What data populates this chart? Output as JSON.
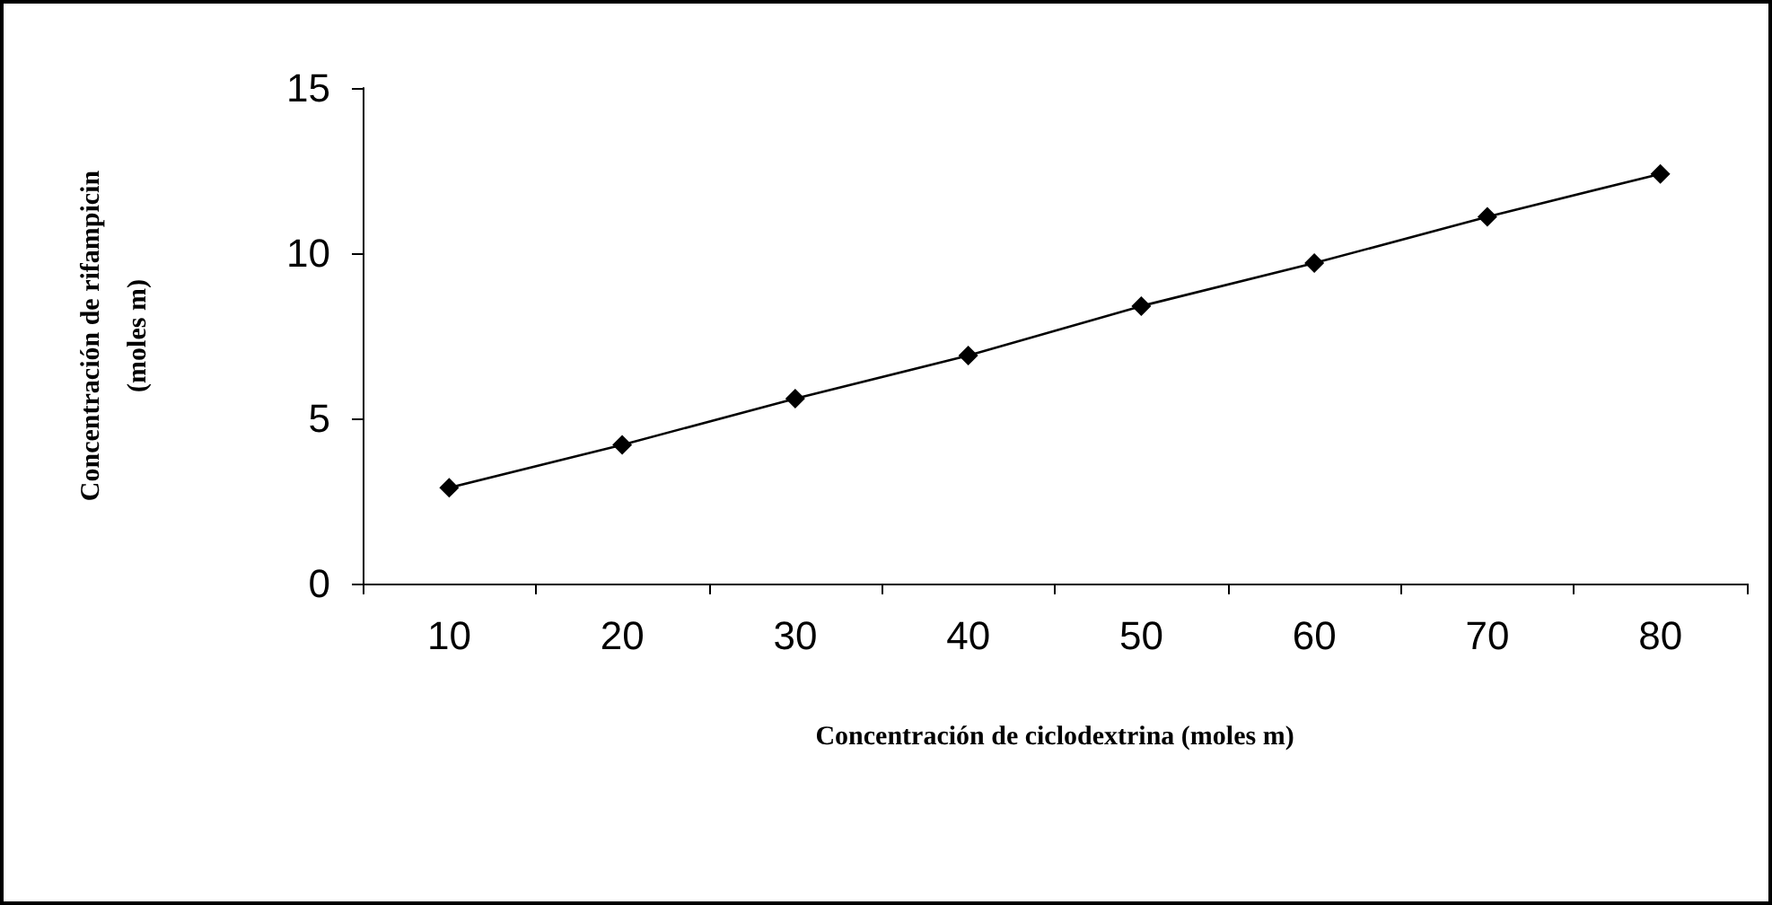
{
  "chart_data": {
    "type": "line",
    "xlabel": "Concentración de ciclodextrina (moles m)",
    "ylabel": "Concentración de rifampicin\n(moles m)",
    "categories": [
      "10",
      "20",
      "30",
      "40",
      "50",
      "60",
      "70",
      "80"
    ],
    "series": [
      {
        "color": "#000000",
        "values": [
          2.9,
          4.2,
          5.6,
          6.9,
          8.4,
          9.7,
          11.1,
          12.4
        ]
      }
    ],
    "ylim": [
      0,
      15
    ],
    "yticks": [
      0,
      5,
      10,
      15
    ],
    "grid": false,
    "marker": "diamond",
    "line_style": "solid"
  }
}
